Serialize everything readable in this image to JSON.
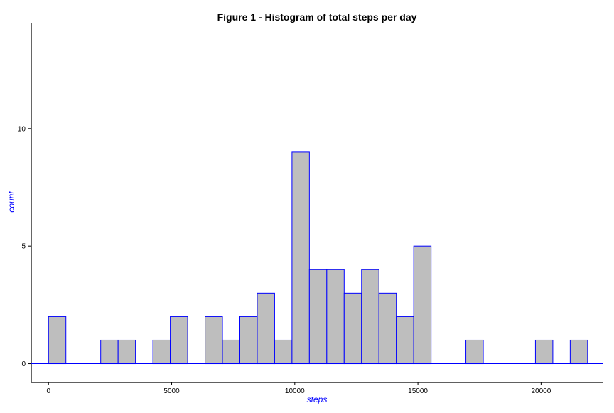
{
  "colors": {
    "bar_fill": "#bebebe",
    "bar_stroke": "#0000ff",
    "axis_label": "#0000ff",
    "axis_line": "#000000",
    "text": "#000000"
  },
  "chart_data": {
    "type": "bar",
    "title": "Figure 1 - Histogram of total steps per day",
    "xlabel": "steps",
    "ylabel": "count",
    "xlim": [
      -700,
      22500
    ],
    "ylim": [
      -0.8,
      14.5
    ],
    "x_ticks": [
      0,
      5000,
      10000,
      15000,
      20000
    ],
    "x_tick_labels": [
      "0",
      "5000",
      "10000",
      "15000",
      "20000"
    ],
    "y_ticks": [
      0,
      5,
      10
    ],
    "y_tick_labels": [
      "0",
      "5",
      "10"
    ],
    "grid": false,
    "legend": "none",
    "baseline_range": [
      -700,
      22500
    ],
    "bin_width": 706,
    "bins": [
      {
        "x": 353,
        "count": 2
      },
      {
        "x": 2472,
        "count": 1
      },
      {
        "x": 3178,
        "count": 1
      },
      {
        "x": 4591,
        "count": 1
      },
      {
        "x": 5297,
        "count": 2
      },
      {
        "x": 6710,
        "count": 2
      },
      {
        "x": 7416,
        "count": 1
      },
      {
        "x": 8122,
        "count": 2
      },
      {
        "x": 8828,
        "count": 3
      },
      {
        "x": 9534,
        "count": 1
      },
      {
        "x": 10240,
        "count": 9
      },
      {
        "x": 10946,
        "count": 4
      },
      {
        "x": 11652,
        "count": 4
      },
      {
        "x": 12358,
        "count": 3
      },
      {
        "x": 13064,
        "count": 4
      },
      {
        "x": 13770,
        "count": 3
      },
      {
        "x": 14476,
        "count": 2
      },
      {
        "x": 15182,
        "count": 5
      },
      {
        "x": 17300,
        "count": 1
      },
      {
        "x": 20124,
        "count": 1
      },
      {
        "x": 21536,
        "count": 1
      }
    ]
  }
}
